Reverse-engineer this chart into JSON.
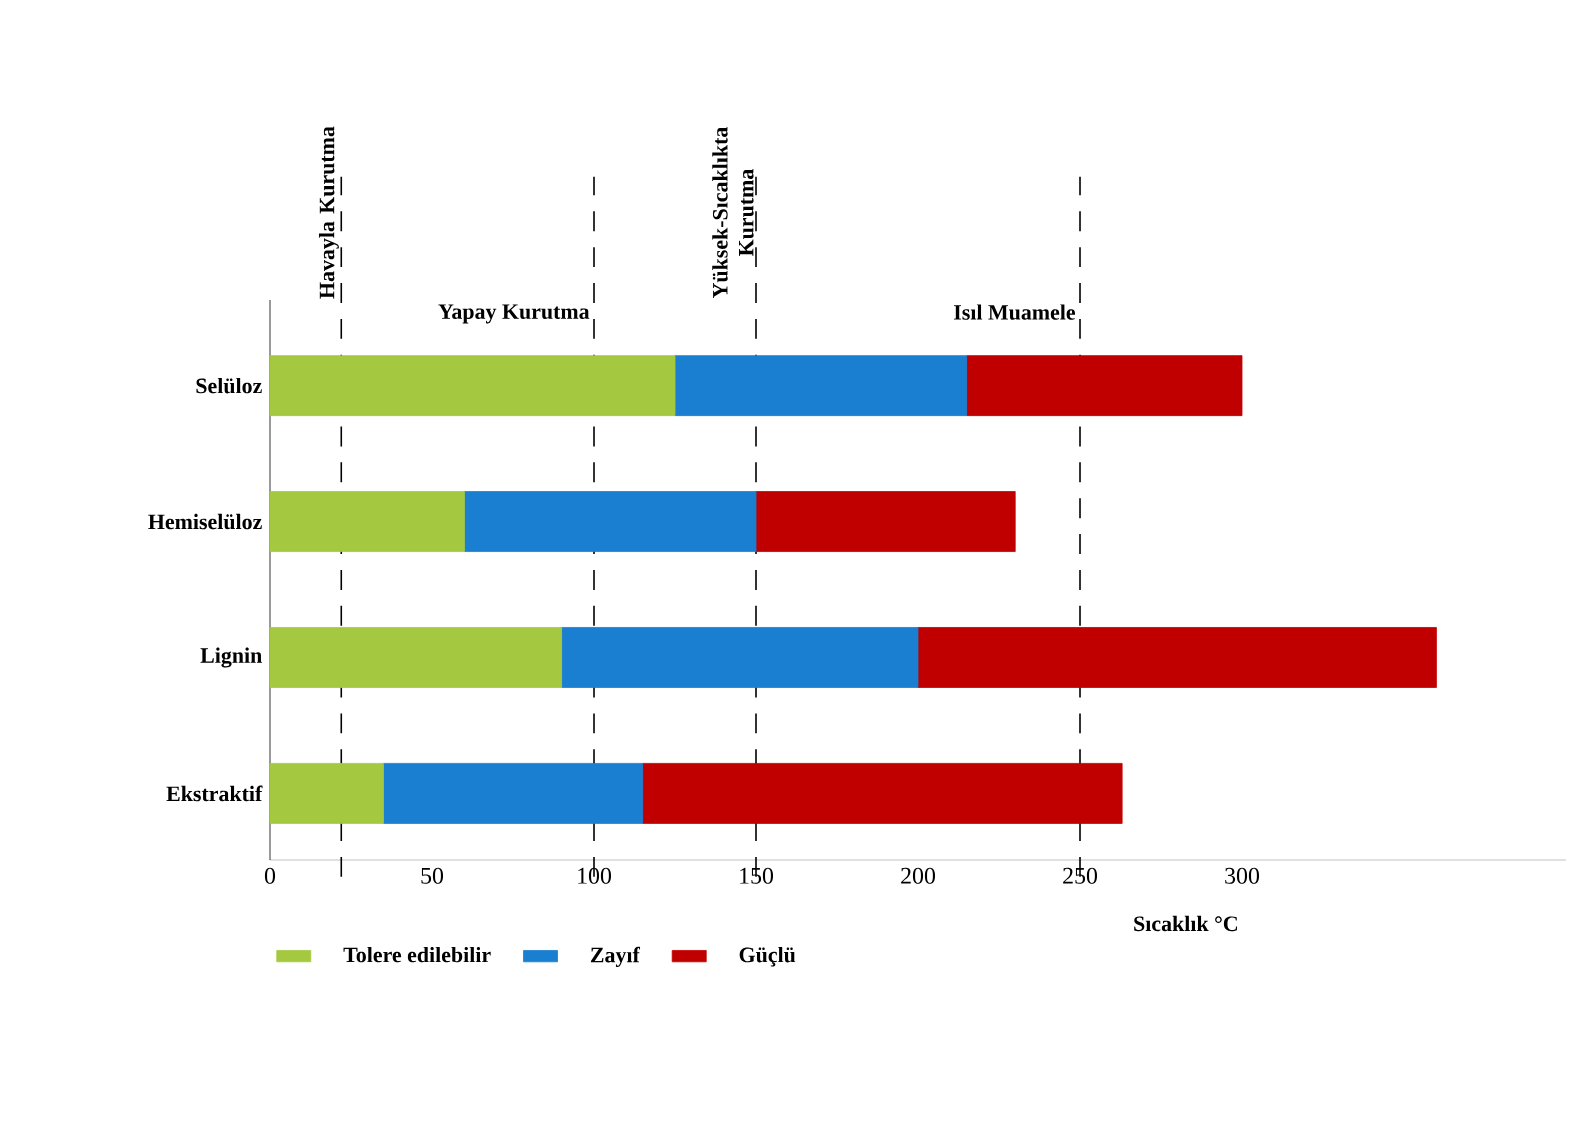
{
  "chart_data": {
    "type": "bar",
    "orientation": "horizontal",
    "stacked": true,
    "xlabel": "Sıcaklık °C",
    "categories": [
      "Selüloz",
      "Hemiselüloz",
      "Lignin",
      "Ekstraktif"
    ],
    "series": [
      {
        "name": "Tolere edilebilir",
        "color": "#a4c940",
        "values": [
          125,
          60,
          90,
          35
        ]
      },
      {
        "name": "Zayıf",
        "color": "#1a7fd0",
        "values": [
          90,
          90,
          110,
          80
        ]
      },
      {
        "name": "Güçlü",
        "color": "#c00000",
        "values": [
          85,
          80,
          160,
          148
        ]
      }
    ],
    "xlim": [
      0,
      400
    ],
    "xticks": [
      0,
      50,
      100,
      150,
      200,
      250,
      300
    ],
    "ref_lines": [
      {
        "axis": "x",
        "value": 22,
        "label": "Havayla Kurutma",
        "line_style": "dashed"
      },
      {
        "axis": "x",
        "value": 100,
        "label": "Yapay Kurutma",
        "line_style": "dashed"
      },
      {
        "axis": "x",
        "value": 150,
        "label": "Yüksek-Sıcaklıkta Kurutma",
        "line_style": "dashed"
      },
      {
        "axis": "x",
        "value": 250,
        "label": "Isıl Muamele",
        "line_style": "dashed"
      }
    ],
    "legend": "bottom"
  }
}
